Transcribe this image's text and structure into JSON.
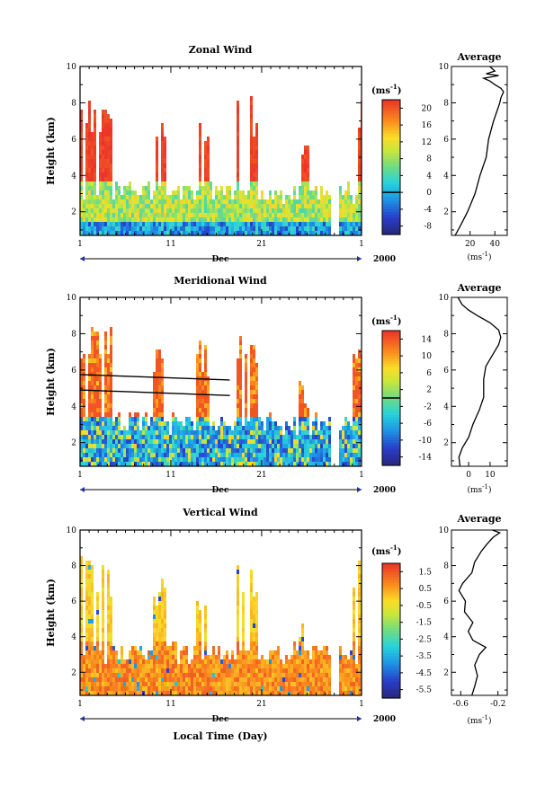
{
  "figure": {
    "xlabel": "Local Time (Day)",
    "month_label": "Dec",
    "year_label": "2000",
    "x_ticklabels": [
      "1",
      "11",
      "21",
      "1"
    ],
    "ylabel": "Height (km)"
  },
  "chart_data": [
    {
      "type": "heatmap",
      "title": "Zonal Wind",
      "xlabel": "Local Time (Day)",
      "ylabel": "Height (km)",
      "xlim": [
        1,
        32
      ],
      "ylim": [
        0.7,
        10
      ],
      "y_ticks": [
        2,
        4,
        6,
        8,
        10
      ],
      "colorbar": {
        "unit_label": "(ms",
        "unit_sup": "-1",
        "unit_close": ")",
        "range": [
          -10,
          22
        ],
        "ticks": [
          -8,
          -4,
          0,
          4,
          8,
          12,
          16,
          20
        ],
        "ticklabels": [
          "-8",
          "-4",
          "0",
          "4",
          "8",
          "12",
          "16",
          "20"
        ],
        "contour": 0
      },
      "profile": {
        "title": "Average",
        "xlim": [
          5,
          50
        ],
        "ticks": [
          20,
          40
        ],
        "xlabel": "(ms",
        "xlabel_sup": "-1",
        "xlabel_close": ")",
        "heights": [
          0.7,
          1.2,
          2.0,
          3.0,
          4.0,
          5.0,
          6.0,
          7.0,
          7.6,
          8.0,
          8.3,
          8.6,
          8.8,
          9.0,
          9.2,
          9.35,
          9.5,
          9.6,
          9.75,
          10.0
        ],
        "values": [
          8,
          12,
          18,
          24,
          28,
          33,
          35,
          39,
          42,
          44,
          45,
          47,
          45,
          40,
          36,
          31,
          43,
          33,
          40,
          36
        ]
      }
    },
    {
      "type": "heatmap",
      "title": "Meridional Wind",
      "xlabel": "Local Time (Day)",
      "ylabel": "Height (km)",
      "xlim": [
        1,
        32
      ],
      "ylim": [
        0.7,
        10
      ],
      "y_ticks": [
        2,
        4,
        6,
        8,
        10
      ],
      "colorbar": {
        "unit_label": "(ms",
        "unit_sup": "-1",
        "unit_close": ")",
        "range": [
          -16,
          16
        ],
        "ticks": [
          -14,
          -10,
          -6,
          -2,
          2,
          6,
          10,
          14
        ],
        "ticklabels": [
          "-14",
          "-10",
          "-6",
          "-2",
          "2",
          "6",
          "10",
          "14"
        ],
        "contour": 0
      },
      "profile": {
        "title": "Average",
        "xlim": [
          -8,
          18
        ],
        "ticks": [
          0,
          10
        ],
        "xlabel": "(ms",
        "xlabel_sup": "-1",
        "xlabel_close": ")",
        "heights": [
          0.7,
          1.2,
          1.7,
          2.3,
          3.0,
          3.8,
          4.5,
          5.5,
          6.2,
          6.8,
          7.4,
          7.8,
          8.2,
          8.6,
          9.0,
          9.3,
          9.6,
          10.0
        ],
        "values": [
          -4,
          -4.5,
          -3,
          0,
          2,
          5,
          7,
          7,
          8,
          11,
          14,
          15,
          14,
          10,
          4,
          0,
          -3,
          -5
        ]
      }
    },
    {
      "type": "heatmap",
      "title": "Vertical Wind",
      "xlabel": "Local Time (Day)",
      "ylabel": "Height (km)",
      "xlim": [
        1,
        32
      ],
      "ylim": [
        0.7,
        10
      ],
      "y_ticks": [
        2,
        4,
        6,
        8,
        10
      ],
      "colorbar": {
        "unit_label": "(ms",
        "unit_sup": "-1",
        "unit_close": ")",
        "range": [
          -6,
          2
        ],
        "ticks": [
          -5.5,
          -4.5,
          -3.5,
          -2.5,
          -1.5,
          -0.5,
          0.5,
          1.5
        ],
        "ticklabels": [
          "-5.5",
          "-4.5",
          "-3.5",
          "-2.5",
          "-1.5",
          "-0.5",
          "0.5",
          "1.5"
        ],
        "contour": null
      },
      "profile": {
        "title": "Average",
        "xlim": [
          -0.7,
          -0.1
        ],
        "ticks": [
          -0.6,
          -0.2
        ],
        "ticklabels": [
          "-0.6",
          "-0.2"
        ],
        "xlabel": "(ms",
        "xlabel_sup": "-1",
        "xlabel_close": ")",
        "heights": [
          0.7,
          1.2,
          1.8,
          2.4,
          3.0,
          3.4,
          3.8,
          4.3,
          4.8,
          5.4,
          6.0,
          6.6,
          7.0,
          7.6,
          8.2,
          8.8,
          9.2,
          9.6,
          9.85,
          10.0
        ],
        "values": [
          -0.48,
          -0.45,
          -0.42,
          -0.45,
          -0.4,
          -0.33,
          -0.47,
          -0.52,
          -0.47,
          -0.56,
          -0.55,
          -0.62,
          -0.58,
          -0.48,
          -0.45,
          -0.38,
          -0.32,
          -0.25,
          -0.18,
          -0.26
        ]
      }
    }
  ]
}
